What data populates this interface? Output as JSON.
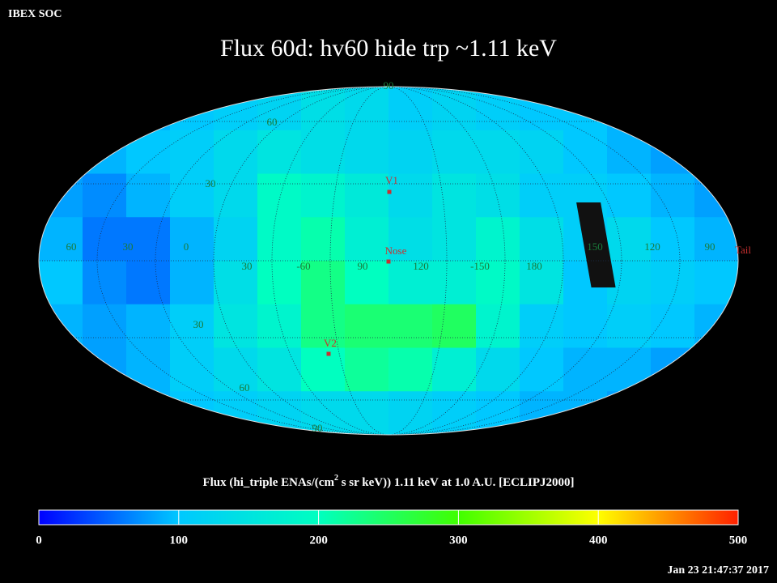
{
  "header": {
    "corner": "IBEX SOC",
    "title": "Flux   60d: hv60 hide trp ~1.11 keV",
    "timestamp": "Jan 23 21:47:37 2017"
  },
  "map": {
    "cells": [
      [
        90,
        90,
        90,
        100,
        110,
        120,
        140,
        130,
        110,
        120,
        110,
        100,
        100,
        90,
        90,
        90
      ],
      [
        80,
        90,
        100,
        110,
        130,
        150,
        140,
        130,
        120,
        130,
        130,
        120,
        100,
        90,
        80,
        80
      ],
      [
        80,
        70,
        90,
        110,
        130,
        190,
        180,
        160,
        130,
        150,
        140,
        110,
        110,
        100,
        90,
        80
      ],
      [
        90,
        60,
        60,
        90,
        120,
        190,
        210,
        170,
        140,
        150,
        180,
        140,
        110,
        130,
        100,
        90
      ],
      [
        100,
        70,
        60,
        90,
        140,
        200,
        230,
        200,
        170,
        170,
        190,
        150,
        100,
        120,
        110,
        100
      ],
      [
        90,
        80,
        90,
        110,
        150,
        180,
        230,
        240,
        240,
        250,
        180,
        110,
        100,
        110,
        100,
        90
      ],
      [
        80,
        80,
        90,
        110,
        130,
        150,
        200,
        220,
        210,
        170,
        130,
        100,
        90,
        90,
        80,
        80
      ],
      [
        80,
        80,
        90,
        100,
        110,
        120,
        130,
        130,
        120,
        110,
        100,
        90,
        90,
        80,
        80,
        80
      ]
    ],
    "lon_labels": [
      "60",
      "30",
      "0",
      "30",
      "-60",
      "90",
      "120",
      "-150",
      "180",
      "150",
      "120",
      "90"
    ],
    "lat_labels": [
      "90",
      "60",
      "30",
      "30",
      "60",
      "90"
    ],
    "markers": [
      "V1",
      "Nose",
      "V2",
      "Tail"
    ]
  },
  "colorbar": {
    "label_parts": [
      "Flux (hi_triple ENAs/(cm",
      "2",
      " s sr keV))  1.11 keV at 1.0 A.U. [ECLIPJ2000]"
    ],
    "lim": [
      0,
      500
    ],
    "ticks": [
      0,
      100,
      200,
      300,
      400,
      500
    ],
    "colors": [
      "#0000ff",
      "#00c8ff",
      "#00ffc0",
      "#40ff00",
      "#ffff00",
      "#ff2000"
    ]
  }
}
